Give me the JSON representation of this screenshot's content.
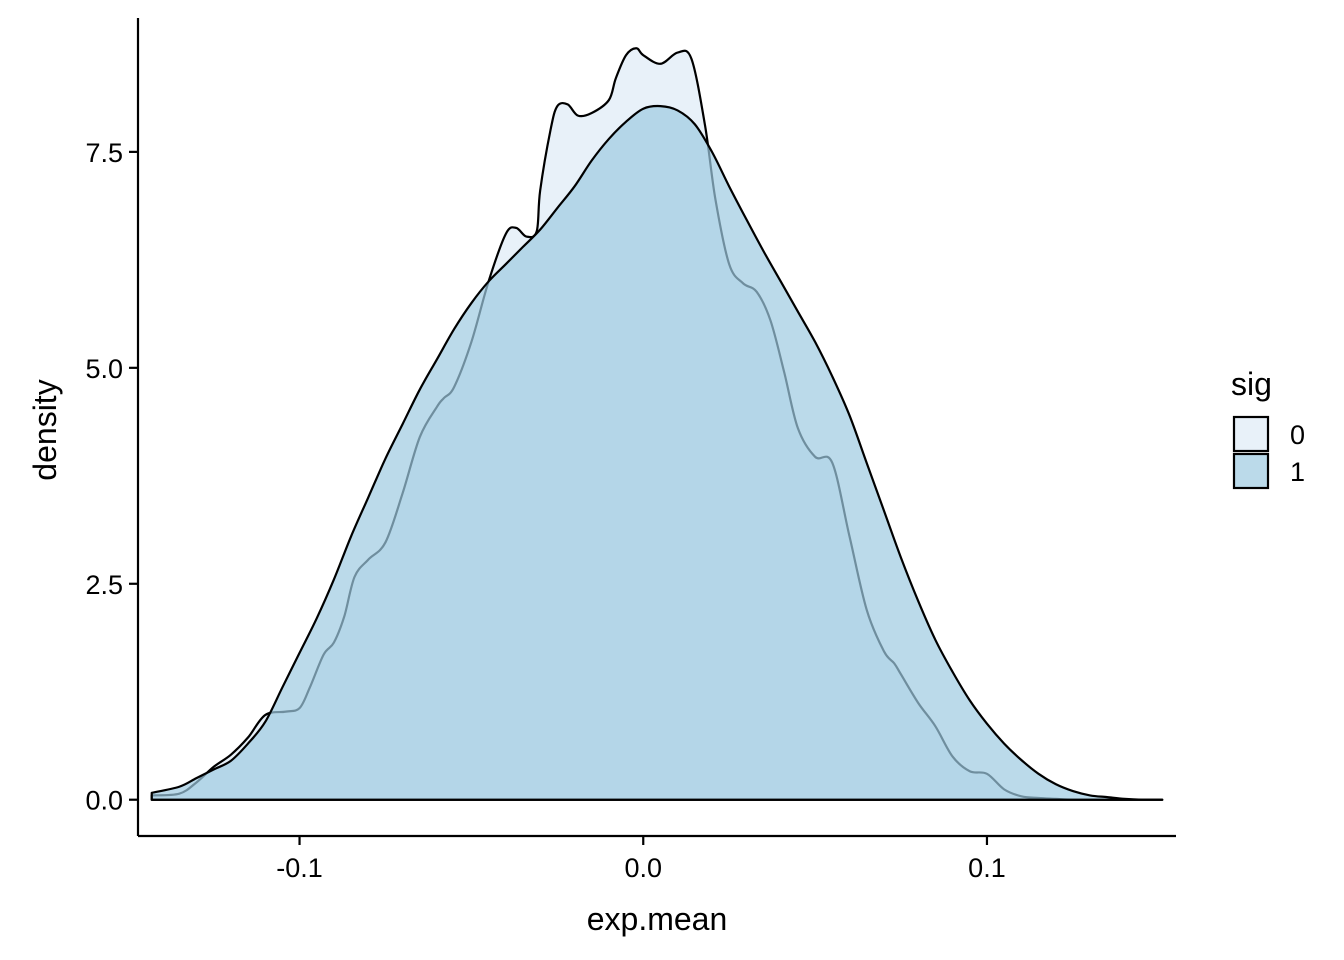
{
  "chart_data": {
    "type": "area",
    "title": "",
    "xlabel": "exp.mean",
    "ylabel": "density",
    "xlim": [
      -0.147,
      0.155
    ],
    "ylim": [
      -0.42,
      9.05
    ],
    "x_ticks": [
      -0.1,
      0.0,
      0.1
    ],
    "x_tick_labels": [
      "-0.1",
      "0.0",
      "0.1"
    ],
    "y_ticks": [
      0.0,
      2.5,
      5.0,
      7.5
    ],
    "y_tick_labels": [
      "0.0",
      "2.5",
      "5.0",
      "7.5"
    ],
    "grid": false,
    "legend": {
      "title": "sig",
      "position": "right"
    },
    "series": [
      {
        "name": "0",
        "color": "#deebf7",
        "x": [
          -0.143,
          -0.135,
          -0.13,
          -0.125,
          -0.12,
          -0.115,
          -0.11,
          -0.104,
          -0.1,
          -0.097,
          -0.093,
          -0.09,
          -0.087,
          -0.084,
          -0.08,
          -0.075,
          -0.07,
          -0.065,
          -0.06,
          -0.058,
          -0.055,
          -0.05,
          -0.045,
          -0.04,
          -0.037,
          -0.034,
          -0.031,
          -0.03,
          -0.027,
          -0.025,
          -0.022,
          -0.019,
          -0.015,
          -0.01,
          -0.008,
          -0.005,
          -0.002,
          0.0,
          0.005,
          0.01,
          0.014,
          0.018,
          0.021,
          0.025,
          0.029,
          0.033,
          0.037,
          0.041,
          0.045,
          0.05,
          0.055,
          0.06,
          0.065,
          0.07,
          0.073,
          0.075,
          0.08,
          0.085,
          0.09,
          0.095,
          0.1,
          0.105,
          0.11,
          0.115,
          0.12,
          0.125,
          0.13,
          0.135,
          0.14,
          0.145,
          0.151
        ],
        "y": [
          0.05,
          0.07,
          0.2,
          0.38,
          0.52,
          0.72,
          0.98,
          1.02,
          1.06,
          1.3,
          1.68,
          1.82,
          2.12,
          2.58,
          2.78,
          2.98,
          3.55,
          4.2,
          4.55,
          4.65,
          4.78,
          5.3,
          6.0,
          6.55,
          6.62,
          6.52,
          6.58,
          7.05,
          7.75,
          8.03,
          8.05,
          7.92,
          7.95,
          8.1,
          8.35,
          8.62,
          8.7,
          8.62,
          8.52,
          8.65,
          8.58,
          7.8,
          6.95,
          6.2,
          5.98,
          5.88,
          5.55,
          4.95,
          4.3,
          3.97,
          3.9,
          3.05,
          2.2,
          1.72,
          1.58,
          1.45,
          1.12,
          0.85,
          0.5,
          0.33,
          0.3,
          0.12,
          0.04,
          0.02,
          0.01,
          0.0,
          0.0,
          0.0,
          0.0,
          0.0,
          0.0
        ]
      },
      {
        "name": "1",
        "color": "#9ecae1",
        "x": [
          -0.143,
          -0.135,
          -0.13,
          -0.125,
          -0.12,
          -0.115,
          -0.11,
          -0.105,
          -0.1,
          -0.095,
          -0.09,
          -0.085,
          -0.08,
          -0.075,
          -0.07,
          -0.065,
          -0.06,
          -0.055,
          -0.05,
          -0.045,
          -0.04,
          -0.035,
          -0.03,
          -0.025,
          -0.02,
          -0.015,
          -0.01,
          -0.005,
          0.0,
          0.005,
          0.01,
          0.015,
          0.02,
          0.025,
          0.03,
          0.035,
          0.04,
          0.045,
          0.05,
          0.055,
          0.06,
          0.065,
          0.07,
          0.075,
          0.08,
          0.085,
          0.09,
          0.095,
          0.1,
          0.105,
          0.11,
          0.115,
          0.12,
          0.125,
          0.13,
          0.135,
          0.14,
          0.145,
          0.151
        ],
        "y": [
          0.08,
          0.15,
          0.25,
          0.35,
          0.45,
          0.65,
          0.9,
          1.3,
          1.7,
          2.1,
          2.55,
          3.05,
          3.5,
          3.95,
          4.35,
          4.75,
          5.1,
          5.45,
          5.75,
          6.0,
          6.2,
          6.4,
          6.6,
          6.85,
          7.1,
          7.4,
          7.65,
          7.85,
          8.0,
          8.03,
          7.98,
          7.82,
          7.5,
          7.1,
          6.72,
          6.35,
          6.0,
          5.65,
          5.3,
          4.9,
          4.45,
          3.9,
          3.35,
          2.8,
          2.3,
          1.85,
          1.48,
          1.15,
          0.88,
          0.65,
          0.46,
          0.3,
          0.18,
          0.1,
          0.05,
          0.03,
          0.01,
          0.0,
          0.0
        ]
      }
    ]
  }
}
